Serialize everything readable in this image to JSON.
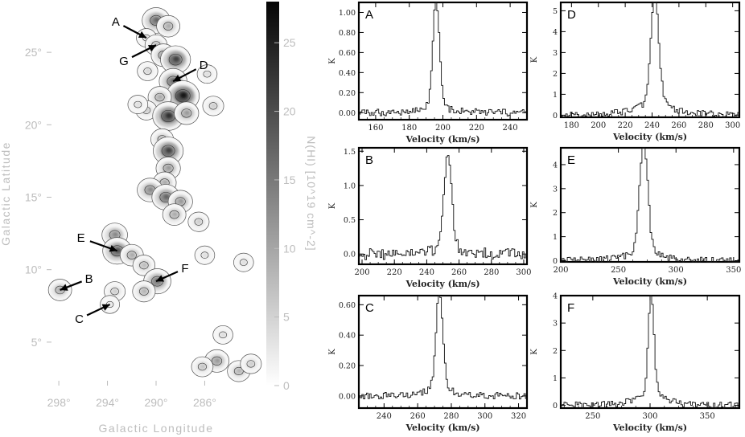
{
  "chart_data": [
    {
      "type": "heatmap",
      "xlabel": "Galactic Longitude",
      "ylabel": "Galactic Latitude",
      "colorbar_label": "N(HI) [10^19 cm^-2]",
      "x_ticks": [
        "298°",
        "294°",
        "290°",
        "286°"
      ],
      "y_ticks": [
        "5°",
        "10°",
        "15°",
        "20°",
        "25°"
      ],
      "colorbar_ticks": [
        "0",
        "5",
        "10",
        "15",
        "20",
        "25"
      ],
      "xlim": [
        299,
        281
      ],
      "ylim": [
        2,
        28.5
      ],
      "clim": [
        0,
        28
      ],
      "annotations": [
        {
          "label": "A",
          "tip_l": 290.8,
          "tip_b": 26.0
        },
        {
          "label": "G",
          "tip_l": 290.0,
          "tip_b": 25.5
        },
        {
          "label": "D",
          "tip_l": 288.6,
          "tip_b": 23.0
        },
        {
          "label": "E",
          "tip_l": 293.2,
          "tip_b": 11.3
        },
        {
          "label": "B",
          "tip_l": 297.9,
          "tip_b": 8.6
        },
        {
          "label": "F",
          "tip_l": 290.0,
          "tip_b": 9.2
        },
        {
          "label": "C",
          "tip_l": 293.8,
          "tip_b": 7.6
        }
      ],
      "blobs": [
        {
          "l": 290.0,
          "b": 27.2,
          "v": 18
        },
        {
          "l": 289.0,
          "b": 26.8,
          "v": 10
        },
        {
          "l": 290.8,
          "b": 26.0,
          "v": 4
        },
        {
          "l": 290.0,
          "b": 25.5,
          "v": 8
        },
        {
          "l": 289.4,
          "b": 24.8,
          "v": 12
        },
        {
          "l": 288.4,
          "b": 24.5,
          "v": 22
        },
        {
          "l": 288.6,
          "b": 23.0,
          "v": 18
        },
        {
          "l": 287.8,
          "b": 22.0,
          "v": 27
        },
        {
          "l": 289.7,
          "b": 21.9,
          "v": 10
        },
        {
          "l": 290.8,
          "b": 21.0,
          "v": 6
        },
        {
          "l": 289.0,
          "b": 20.6,
          "v": 24
        },
        {
          "l": 287.5,
          "b": 20.8,
          "v": 12
        },
        {
          "l": 291.5,
          "b": 21.4,
          "v": 4
        },
        {
          "l": 289.5,
          "b": 19.0,
          "v": 9
        },
        {
          "l": 289.0,
          "b": 18.2,
          "v": 22
        },
        {
          "l": 289.0,
          "b": 17.0,
          "v": 12
        },
        {
          "l": 289.3,
          "b": 16.0,
          "v": 10
        },
        {
          "l": 290.5,
          "b": 15.5,
          "v": 14
        },
        {
          "l": 289.2,
          "b": 15.0,
          "v": 18
        },
        {
          "l": 288.0,
          "b": 14.7,
          "v": 12
        },
        {
          "l": 288.5,
          "b": 13.8,
          "v": 10
        },
        {
          "l": 293.4,
          "b": 12.4,
          "v": 14
        },
        {
          "l": 293.2,
          "b": 11.3,
          "v": 20
        },
        {
          "l": 292.0,
          "b": 11.0,
          "v": 10
        },
        {
          "l": 291.0,
          "b": 10.3,
          "v": 8
        },
        {
          "l": 289.9,
          "b": 9.2,
          "v": 17
        },
        {
          "l": 291.0,
          "b": 8.5,
          "v": 9
        },
        {
          "l": 293.4,
          "b": 8.5,
          "v": 6
        },
        {
          "l": 297.9,
          "b": 8.6,
          "v": 10
        },
        {
          "l": 293.8,
          "b": 7.6,
          "v": 3
        },
        {
          "l": 285.0,
          "b": 3.7,
          "v": 12
        },
        {
          "l": 286.2,
          "b": 3.3,
          "v": 7
        },
        {
          "l": 283.2,
          "b": 3.0,
          "v": 9
        },
        {
          "l": 282.2,
          "b": 3.5,
          "v": 6
        },
        {
          "l": 284.5,
          "b": 5.5,
          "v": 4
        },
        {
          "l": 282.8,
          "b": 10.5,
          "v": 4
        },
        {
          "l": 285.3,
          "b": 21.3,
          "v": 6
        },
        {
          "l": 285.8,
          "b": 23.5,
          "v": 4
        },
        {
          "l": 286.5,
          "b": 13.3,
          "v": 6
        },
        {
          "l": 286.0,
          "b": 11.0,
          "v": 4
        },
        {
          "l": 290.7,
          "b": 23.7,
          "v": 5
        }
      ]
    },
    {
      "type": "line",
      "panel": "A",
      "xlabel": "Velocity (km/s)",
      "ylabel": "K",
      "xlim": [
        150,
        250
      ],
      "ylim": [
        -0.07,
        1.1
      ],
      "x_ticks": [
        160,
        180,
        200,
        220,
        240
      ],
      "y_ticks": [
        0.0,
        0.2,
        0.4,
        0.6,
        0.8,
        1.0
      ],
      "y_tick_labels": [
        "0.00",
        "0.20",
        "0.40",
        "0.60",
        "0.80",
        "1.00"
      ],
      "series": [
        {
          "center": 196,
          "peak": 1.03,
          "core_width": 2.0,
          "wing_amp": 0.1,
          "wing_width": 8,
          "noise": 0.03
        }
      ]
    },
    {
      "type": "line",
      "panel": "B",
      "xlabel": "Velocity (km/s)",
      "ylabel": "K",
      "xlim": [
        198,
        302
      ],
      "ylim": [
        -0.15,
        1.55
      ],
      "x_ticks": [
        200,
        220,
        240,
        260,
        280,
        300
      ],
      "y_ticks": [
        0.0,
        0.5,
        1.0,
        1.5
      ],
      "y_tick_labels": [
        "0.0",
        "0.5",
        "1.0",
        "1.5"
      ],
      "series": [
        {
          "center": 253,
          "peak": 1.35,
          "core_width": 2.5,
          "wing_amp": 0.1,
          "wing_width": 10,
          "noise": 0.05
        }
      ]
    },
    {
      "type": "line",
      "panel": "C",
      "xlabel": "Velocity (km/s)",
      "ylabel": "K",
      "xlim": [
        225,
        325
      ],
      "ylim": [
        -0.08,
        0.66
      ],
      "x_ticks": [
        240,
        260,
        280,
        300,
        320
      ],
      "y_ticks": [
        0.0,
        0.2,
        0.4,
        0.6
      ],
      "y_tick_labels": [
        "0.00",
        "0.20",
        "0.40",
        "0.60"
      ],
      "series": [
        {
          "center": 273,
          "peak": 0.6,
          "core_width": 2.0,
          "wing_amp": 0.1,
          "wing_width": 7,
          "noise": 0.03
        }
      ]
    },
    {
      "type": "line",
      "panel": "D",
      "xlabel": "Velocity (km/s)",
      "ylabel": "K",
      "xlim": [
        172,
        305
      ],
      "ylim": [
        -0.1,
        5.4
      ],
      "x_ticks": [
        180,
        200,
        220,
        240,
        260,
        280,
        300
      ],
      "y_ticks": [
        0,
        1,
        2,
        3,
        4,
        5
      ],
      "y_tick_labels": [
        "0",
        "1",
        "2",
        "3",
        "4",
        "5"
      ],
      "series": [
        {
          "center": 242,
          "peak": 4.9,
          "core_width": 3.0,
          "wing_amp": 0.9,
          "wing_width": 14,
          "noise": 0.03
        }
      ]
    },
    {
      "type": "line",
      "panel": "E",
      "xlabel": "Velocity (km/s)",
      "ylabel": "K",
      "xlim": [
        200,
        355
      ],
      "ylim": [
        -0.05,
        4.7
      ],
      "x_ticks": [
        200,
        250,
        300,
        350
      ],
      "y_ticks": [
        0,
        1,
        2,
        3,
        4
      ],
      "y_tick_labels": [
        "0",
        "1",
        "2",
        "3",
        "4"
      ],
      "series": [
        {
          "center": 272,
          "peak": 4.45,
          "core_width": 3.5,
          "wing_amp": 0.6,
          "wing_width": 14,
          "noise": 0.03
        }
      ]
    },
    {
      "type": "line",
      "panel": "F",
      "xlabel": "Velocity (km/s)",
      "ylabel": "K",
      "xlim": [
        222,
        378
      ],
      "ylim": [
        -0.1,
        4.0
      ],
      "x_ticks": [
        250,
        300,
        350
      ],
      "y_ticks": [
        0,
        1,
        2,
        3,
        4
      ],
      "y_tick_labels": [
        "0",
        "1",
        "2",
        "3",
        "4"
      ],
      "series": [
        {
          "center": 301,
          "peak": 3.45,
          "core_width": 2.5,
          "wing_amp": 0.6,
          "wing_width": 13,
          "noise": 0.03
        }
      ]
    }
  ]
}
